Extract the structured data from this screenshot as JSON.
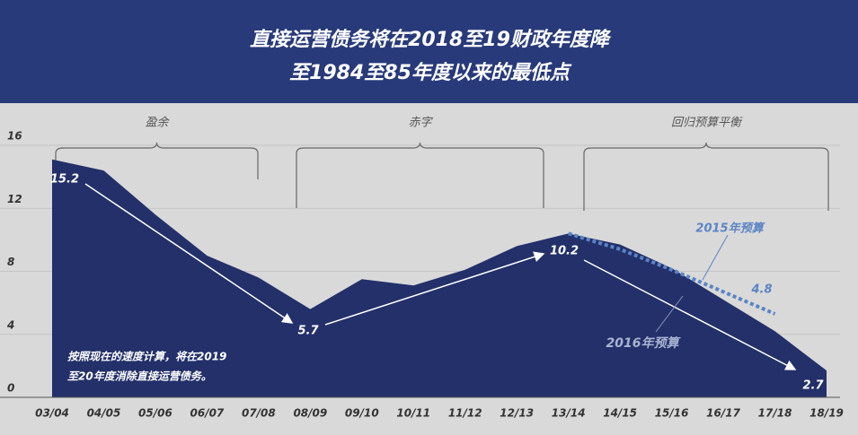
{
  "chart_data": {
    "type": "area",
    "title": [
      "直接运营债务将在2018至19财政年度降",
      "至1984至85年度以来的最低点"
    ],
    "categories": [
      "03/04",
      "04/05",
      "05/06",
      "06/07",
      "07/08",
      "08/09",
      "09/10",
      "10/11",
      "11/12",
      "12/13",
      "13/14",
      "14/15",
      "15/16",
      "16/17",
      "17/18",
      "18/19"
    ],
    "series": [
      {
        "name": "2016年预算",
        "color": "#23306a",
        "style": "area",
        "values": [
          15.1,
          14.4,
          11.6,
          9.0,
          7.6,
          5.6,
          7.5,
          7.1,
          8.1,
          9.6,
          10.4,
          9.7,
          8.2,
          6.2,
          4.2,
          1.7
        ]
      },
      {
        "name": "2015年预算",
        "color": "#5b84c4",
        "style": "dotted",
        "values": [
          null,
          null,
          null,
          null,
          null,
          null,
          null,
          null,
          null,
          null,
          10.4,
          9.4,
          8.1,
          6.7,
          5.3,
          null
        ]
      }
    ],
    "ylim": [
      0,
      16
    ],
    "yticks": [
      0,
      4,
      8,
      12,
      16
    ],
    "grid": true,
    "periods": [
      "盈余",
      "赤字",
      "回归预算平衡"
    ],
    "annotations": [
      "15.2",
      "5.7",
      "10.2",
      "2.7",
      "4.8"
    ],
    "note": [
      "按照现在的速度计算，将在2019",
      "至20年度消除直接运营债务。"
    ]
  }
}
